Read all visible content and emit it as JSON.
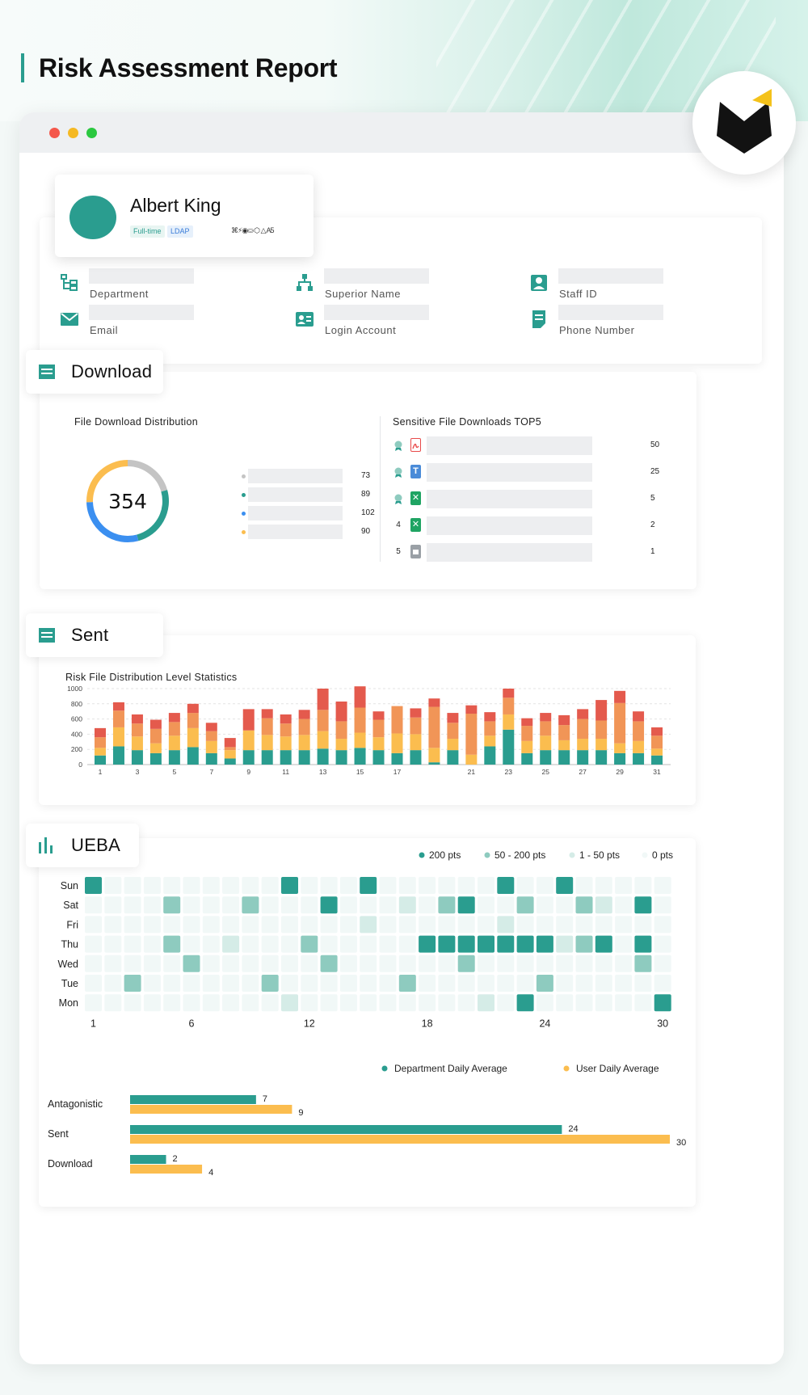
{
  "title": "Risk Assessment Report",
  "profile": {
    "name": "Albert King",
    "tags": [
      "Full-time",
      "LDAP"
    ],
    "app_icons_text": "⌘⚡◉⛀ ⬡ △ A5"
  },
  "info_fields": {
    "department": "Department",
    "superior": "Superior Name",
    "staff_id": "Staff ID",
    "email": "Email",
    "login": "Login Account",
    "phone": "Phone Number"
  },
  "sections": {
    "download": "Download",
    "sent": "Sent",
    "ueba": "UEBA"
  },
  "download": {
    "distribution_title": "File Download Distribution",
    "total": "354",
    "legend_values": [
      "73",
      "89",
      "102",
      "90"
    ],
    "legend_colors": [
      "#c4c4c4",
      "#2a9d8f",
      "#3b8ff0",
      "#fbbd4f"
    ],
    "top5_title": "Sensitive File Downloads TOP5",
    "top5": [
      {
        "rank": "",
        "file_icon": "pdf-icon",
        "value": "50"
      },
      {
        "rank": "",
        "file_icon": "text-doc-icon",
        "value": "25"
      },
      {
        "rank": "",
        "file_icon": "excel-icon",
        "value": "5"
      },
      {
        "rank": "4",
        "file_icon": "excel-icon",
        "value": "2"
      },
      {
        "rank": "5",
        "file_icon": "archive-icon",
        "value": "1"
      }
    ]
  },
  "chart_data": [
    {
      "type": "bar",
      "stacked": true,
      "title": "Risk File Distribution Level Statistics",
      "x": [
        1,
        2,
        3,
        4,
        5,
        6,
        7,
        8,
        9,
        10,
        11,
        12,
        13,
        14,
        15,
        16,
        17,
        18,
        19,
        20,
        21,
        22,
        23,
        24,
        25,
        26,
        27,
        28,
        29,
        30,
        31
      ],
      "xticks": [
        "1",
        "3",
        "5",
        "7",
        "9",
        "11",
        "13",
        "15",
        "17",
        "21",
        "23",
        "25",
        "27",
        "29",
        "31"
      ],
      "ylim": [
        0,
        1000
      ],
      "yticks": [
        "0",
        "200",
        "400",
        "600",
        "800",
        "1000"
      ],
      "grid": true,
      "series": [
        {
          "color": "#2a9d8f",
          "values": [
            120,
            240,
            190,
            150,
            190,
            230,
            150,
            80,
            190,
            190,
            190,
            190,
            210,
            190,
            220,
            190,
            150,
            190,
            30,
            190,
            0,
            240,
            460,
            150,
            190,
            190,
            190,
            190,
            150,
            150,
            120
          ]
        },
        {
          "color": "#fbbd4f",
          "values": [
            100,
            250,
            180,
            130,
            190,
            250,
            160,
            110,
            260,
            200,
            180,
            200,
            230,
            150,
            200,
            170,
            260,
            210,
            190,
            150,
            130,
            140,
            200,
            160,
            190,
            130,
            150,
            150,
            130,
            160,
            90
          ]
        },
        {
          "color": "#f19557",
          "values": [
            140,
            220,
            170,
            190,
            180,
            200,
            130,
            40,
            0,
            220,
            170,
            210,
            280,
            230,
            330,
            230,
            360,
            220,
            540,
            210,
            540,
            190,
            220,
            200,
            190,
            200,
            260,
            240,
            530,
            260,
            170
          ]
        },
        {
          "color": "#e45a4d",
          "values": [
            120,
            110,
            120,
            120,
            120,
            120,
            110,
            120,
            280,
            120,
            120,
            120,
            280,
            260,
            280,
            110,
            0,
            120,
            110,
            130,
            110,
            120,
            120,
            100,
            110,
            130,
            130,
            270,
            160,
            130,
            110
          ]
        }
      ]
    },
    {
      "type": "heatmap",
      "title": "",
      "y_categories": [
        "Sun",
        "Sat",
        "Fri",
        "Thu",
        "Wed",
        "Tue",
        "Mon"
      ],
      "xticks": [
        "1",
        "6",
        "12",
        "18",
        "24",
        "30"
      ],
      "legend": [
        {
          "label": "200 pts",
          "color": "#2a9d8f"
        },
        {
          "label": "50 - 200 pts",
          "color": "#8ecbbf"
        },
        {
          "label": "1 - 50 pts",
          "color": "#d5ece7"
        },
        {
          "label": "0 pts",
          "color": "#f1f8f7"
        }
      ],
      "levels": [
        [
          3,
          0,
          0,
          0,
          0,
          0,
          0,
          0,
          0,
          0,
          3,
          0,
          0,
          0,
          3,
          0,
          0,
          0,
          0,
          0,
          0,
          3,
          0,
          0,
          3,
          0,
          0,
          0,
          0,
          0
        ],
        [
          0,
          0,
          0,
          0,
          2,
          0,
          0,
          0,
          2,
          0,
          0,
          0,
          3,
          0,
          0,
          0,
          1,
          0,
          2,
          3,
          0,
          0,
          2,
          0,
          0,
          2,
          1,
          0,
          3,
          0
        ],
        [
          0,
          0,
          0,
          0,
          0,
          0,
          0,
          0,
          0,
          0,
          0,
          0,
          0,
          0,
          1,
          0,
          0,
          0,
          0,
          0,
          0,
          1,
          0,
          0,
          0,
          0,
          0,
          0,
          0,
          0
        ],
        [
          0,
          0,
          0,
          0,
          2,
          0,
          0,
          1,
          0,
          0,
          0,
          2,
          0,
          0,
          0,
          0,
          0,
          3,
          3,
          3,
          3,
          3,
          3,
          3,
          1,
          2,
          3,
          0,
          3,
          0
        ],
        [
          0,
          0,
          0,
          0,
          0,
          2,
          0,
          0,
          0,
          0,
          0,
          0,
          2,
          0,
          0,
          0,
          0,
          0,
          0,
          2,
          0,
          0,
          0,
          0,
          0,
          0,
          0,
          0,
          2,
          0
        ],
        [
          0,
          0,
          2,
          0,
          0,
          0,
          0,
          0,
          0,
          2,
          0,
          0,
          0,
          0,
          0,
          0,
          2,
          0,
          0,
          0,
          0,
          0,
          0,
          2,
          0,
          0,
          0,
          0,
          0,
          0
        ],
        [
          0,
          0,
          0,
          0,
          0,
          0,
          0,
          0,
          0,
          0,
          1,
          0,
          0,
          0,
          0,
          0,
          0,
          0,
          0,
          0,
          1,
          0,
          3,
          0,
          0,
          0,
          0,
          0,
          0,
          3
        ]
      ]
    },
    {
      "type": "bar",
      "orientation": "horizontal",
      "title": "",
      "categories": [
        "Antagonistic",
        "Sent",
        "Download"
      ],
      "series": [
        {
          "name": "Department Daily Average",
          "color": "#2a9d8f",
          "values": [
            7,
            24,
            2
          ]
        },
        {
          "name": "User Daily Average",
          "color": "#fbbd4f",
          "values": [
            9,
            30,
            4
          ]
        }
      ],
      "xlim": [
        0,
        30
      ],
      "legend_position": "top-right"
    }
  ]
}
